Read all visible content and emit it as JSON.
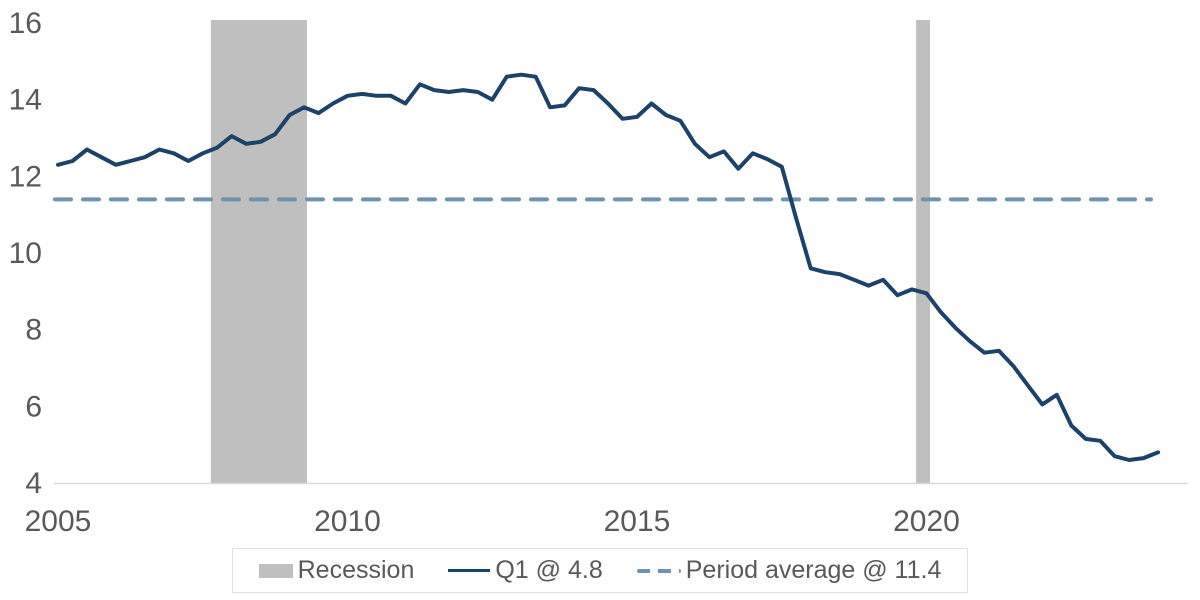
{
  "chart_data": {
    "type": "line",
    "title": "",
    "xlabel": "",
    "ylabel": "",
    "x_start_year": 2005,
    "x_step_years": 0.25,
    "x_end_year": 2024.0,
    "ylim": [
      4,
      16
    ],
    "y_ticks": [
      4,
      6,
      8,
      10,
      12,
      14,
      16
    ],
    "x_ticks": [
      2005,
      2010,
      2015,
      2020
    ],
    "grid": false,
    "legend_position": "bottom",
    "series": [
      {
        "name": "Q1",
        "last_value": 4.8,
        "values": [
          12.3,
          12.4,
          12.7,
          12.5,
          12.3,
          12.4,
          12.5,
          12.7,
          12.6,
          12.4,
          12.6,
          12.75,
          13.05,
          12.85,
          12.9,
          13.1,
          13.6,
          13.8,
          13.65,
          13.9,
          14.1,
          14.15,
          14.1,
          14.1,
          13.9,
          14.4,
          14.25,
          14.2,
          14.25,
          14.2,
          14.0,
          14.6,
          14.65,
          14.6,
          13.8,
          13.85,
          14.3,
          14.25,
          13.9,
          13.5,
          13.55,
          13.9,
          13.6,
          13.45,
          12.85,
          12.5,
          12.65,
          12.2,
          12.6,
          12.45,
          12.25,
          10.9,
          9.6,
          9.5,
          9.45,
          9.3,
          9.15,
          9.3,
          8.9,
          9.05,
          8.95,
          8.45,
          8.05,
          7.7,
          7.4,
          7.45,
          7.05,
          6.55,
          6.05,
          6.3,
          5.5,
          5.15,
          5.1,
          4.7,
          4.6,
          4.65,
          4.8
        ]
      }
    ],
    "average_line": {
      "value": 11.4,
      "style": "dashed"
    },
    "recession_bands": [
      {
        "from": 2007.64,
        "to": 2009.3
      },
      {
        "from": 2019.82,
        "to": 2020.06
      }
    ]
  },
  "legend": {
    "recession_label": "Recession",
    "series_label": "Q1 @ 4.8",
    "average_label": "Period average @ 11.4"
  },
  "colors": {
    "series_line": "#1c4269",
    "average_line": "#6d93af",
    "recession_band": "#bfbfbf",
    "axis_text": "#595959",
    "axis_line": "#d9d9d9",
    "legend_border": "#e0e0e0",
    "background": "#ffffff"
  }
}
